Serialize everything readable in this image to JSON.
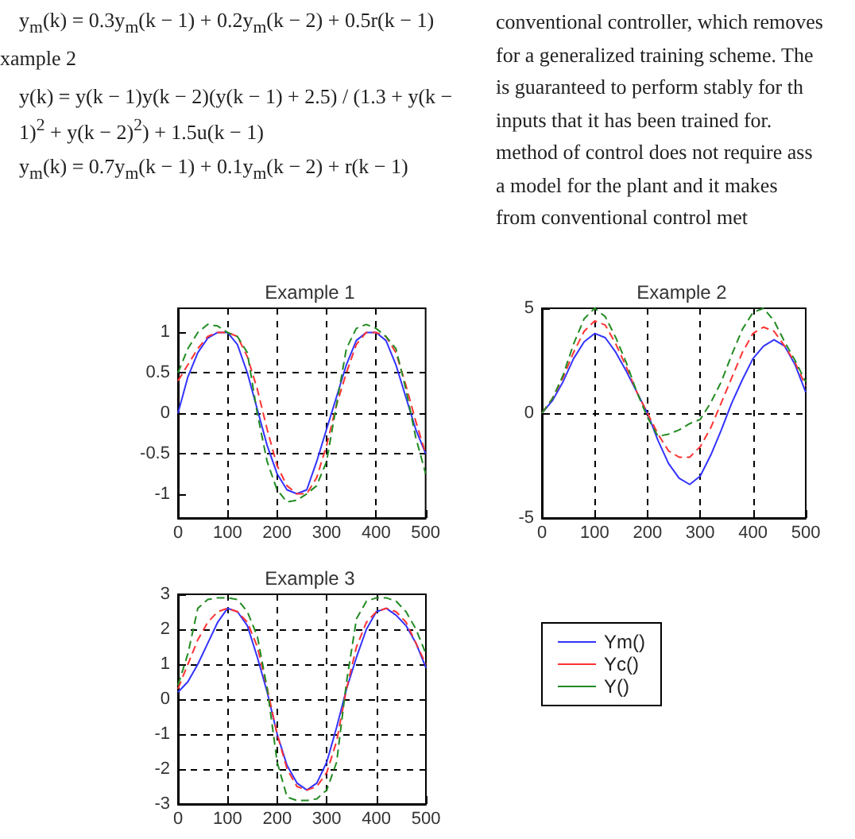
{
  "chart_data": [
    {
      "type": "other",
      "annotations": [
        "y$_{m}$(k) = 0.3y$_{m}$(k − 1) + 0.2y$_{m}$(k − 2) + 0.5r(k − 1)",
        "xample 2",
        "y(k) = y(k − 1)y(k − 2)(y(k − 1) + 2.5) / (1.3 + y(k − 1)$^{2}$ + y(k − 2)$^{2}$) + 1.5u(k − 1)",
        "y$_{m}$(k) = 0.7y$_{m}$(k − 1) + 0.1y$_{m}$(k − 2) + r(k − 1)",
        "conventional controller, which removes",
        "for a generalized training scheme. The",
        "is guaranteed to perform stably for th",
        "inputs that it has been trained for.",
        "method of control does not require ass",
        "a model for the plant and it makes",
        "from conventional control met"
      ]
    },
    {
      "type": "line",
      "title": "Example 1",
      "x": [
        0,
        20,
        40,
        60,
        80,
        100,
        120,
        140,
        160,
        180,
        200,
        220,
        240,
        260,
        280,
        300,
        320,
        340,
        360,
        380,
        400,
        420,
        440,
        460,
        480,
        500
      ],
      "xlim": [
        0,
        500
      ],
      "xticks": [
        0,
        100,
        200,
        300,
        400,
        500
      ],
      "ylim": [
        -1.3,
        1.3
      ],
      "yticks": [
        -1,
        -0.5,
        0,
        0.5,
        1
      ],
      "grid": true,
      "marker": "none",
      "legend": false,
      "series": [
        {
          "color": "#3333ff",
          "line_style": "solid",
          "values": [
            0,
            0.45,
            0.75,
            0.93,
            1,
            1,
            0.85,
            0.5,
            0.05,
            -0.4,
            -0.75,
            -0.95,
            -1,
            -0.95,
            -0.6,
            -0.2,
            0.2,
            0.6,
            0.9,
            1,
            1,
            0.9,
            0.6,
            0.2,
            -0.2,
            -0.5
          ]
        },
        {
          "color": "#ff3333",
          "line_style": "dashed",
          "values": [
            0.4,
            0.6,
            0.8,
            0.95,
            1,
            1,
            0.95,
            0.7,
            0.3,
            -0.2,
            -0.65,
            -0.9,
            -1,
            -1,
            -0.8,
            -0.4,
            0.1,
            0.5,
            0.85,
            1,
            1,
            0.95,
            0.75,
            0.35,
            -0.1,
            -0.5
          ]
        },
        {
          "color": "#228b22",
          "line_style": "dashed",
          "values": [
            0.5,
            0.8,
            1,
            1.1,
            1.08,
            1,
            0.95,
            0.75,
            0,
            -0.6,
            -0.95,
            -1.1,
            -1.08,
            -1,
            -0.9,
            -0.6,
            0.1,
            0.8,
            1.05,
            1.1,
            1.05,
            0.95,
            0.8,
            0.3,
            -0.3,
            -0.75
          ]
        }
      ]
    },
    {
      "type": "line",
      "title": "Example 2",
      "x": [
        0,
        20,
        40,
        60,
        80,
        100,
        120,
        140,
        160,
        180,
        200,
        220,
        240,
        260,
        280,
        300,
        320,
        340,
        360,
        380,
        400,
        420,
        440,
        460,
        480,
        500
      ],
      "xlim": [
        0,
        500
      ],
      "xticks": [
        0,
        100,
        200,
        300,
        400,
        500
      ],
      "ylim": [
        -5,
        5
      ],
      "yticks": [
        -5,
        0,
        5
      ],
      "grid": true,
      "marker": "none",
      "legend": false,
      "series": [
        {
          "color": "#3333ff",
          "line_style": "solid",
          "values": [
            0,
            0.6,
            1.5,
            2.6,
            3.4,
            3.8,
            3.6,
            2.9,
            2,
            1,
            0,
            -1.3,
            -2.4,
            -3.1,
            -3.4,
            -3,
            -2,
            -0.8,
            0.5,
            1.6,
            2.6,
            3.2,
            3.5,
            3.2,
            2.3,
            1
          ]
        },
        {
          "color": "#ff3333",
          "line_style": "dashed",
          "values": [
            0,
            0.7,
            1.7,
            2.9,
            3.9,
            4.4,
            4.2,
            3.3,
            2.2,
            1,
            0,
            -1,
            -1.8,
            -2.1,
            -2.1,
            -1.6,
            -0.7,
            0.5,
            1.7,
            2.9,
            3.8,
            4.1,
            3.9,
            3.2,
            2.4,
            1.3
          ]
        },
        {
          "color": "#228b22",
          "line_style": "dashed",
          "values": [
            0,
            0.7,
            1.8,
            3.3,
            4.5,
            5,
            4.6,
            3.6,
            2.4,
            1,
            -0.2,
            -1.1,
            -1,
            -0.8,
            -0.5,
            -0.3,
            0.5,
            1.5,
            2.8,
            4,
            4.8,
            5,
            4.4,
            3.4,
            2.5,
            1.5
          ]
        }
      ]
    },
    {
      "type": "line",
      "title": "Example 3",
      "x": [
        0,
        20,
        40,
        60,
        80,
        100,
        120,
        140,
        160,
        180,
        200,
        220,
        240,
        260,
        280,
        300,
        320,
        340,
        360,
        380,
        400,
        420,
        440,
        460,
        480,
        500
      ],
      "xlim": [
        0,
        500
      ],
      "xticks": [
        0,
        100,
        200,
        300,
        400,
        500
      ],
      "ylim": [
        -3,
        3
      ],
      "yticks": [
        -3,
        -2,
        -1,
        0,
        1,
        2,
        3
      ],
      "grid": true,
      "marker": "none",
      "legend": "right",
      "series": [
        {
          "name": "Ym()",
          "color": "#3333ff",
          "line_style": "solid",
          "values": [
            0.2,
            0.5,
            1,
            1.6,
            2.2,
            2.6,
            2.5,
            2.1,
            1.2,
            0.2,
            -1,
            -1.9,
            -2.4,
            -2.6,
            -2.4,
            -1.8,
            -0.8,
            0.3,
            1.2,
            2,
            2.5,
            2.6,
            2.4,
            2.1,
            1.6,
            0.9
          ]
        },
        {
          "name": "Yc()",
          "color": "#ff3333",
          "line_style": "dashed",
          "values": [
            0.3,
            1,
            1.7,
            2.2,
            2.5,
            2.6,
            2.5,
            2.2,
            1.5,
            0.3,
            -1,
            -2,
            -2.5,
            -2.6,
            -2.5,
            -2.1,
            -1.2,
            0.3,
            1.5,
            2.2,
            2.5,
            2.6,
            2.5,
            2.2,
            1.6,
            1
          ]
        },
        {
          "name": "Y()",
          "color": "#228b22",
          "line_style": "dashed",
          "values": [
            0.4,
            1.3,
            2.6,
            2.85,
            2.9,
            2.9,
            2.85,
            2.5,
            1.8,
            0.3,
            -1.8,
            -2.8,
            -2.9,
            -2.9,
            -2.85,
            -2.6,
            -1.8,
            0.5,
            2.3,
            2.8,
            2.9,
            2.9,
            2.8,
            2.5,
            2,
            1.3
          ]
        }
      ]
    }
  ]
}
